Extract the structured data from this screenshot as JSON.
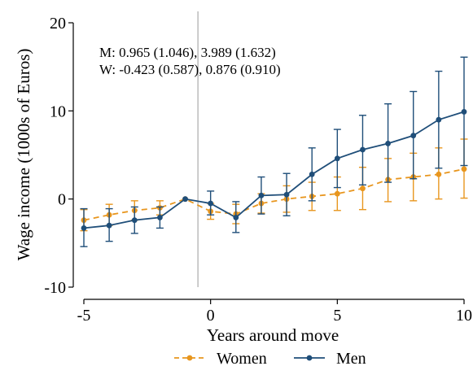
{
  "chart_data": {
    "type": "line",
    "xlabel": "Years around move",
    "ylabel": "Wage income (1000s of Euros)",
    "xlim": [
      -5,
      10
    ],
    "ylim": [
      -10,
      20
    ],
    "x_ticks": [
      -5,
      0,
      5,
      10
    ],
    "y_ticks": [
      -10,
      0,
      10,
      20
    ],
    "x_tick_labels": [
      "-5",
      "0",
      "5",
      "10"
    ],
    "y_tick_labels": [
      "-10",
      "0",
      "10",
      "20"
    ],
    "reference_line_x": -0.5,
    "grid": false,
    "legend_position": "bottom",
    "annotations": [
      "M: 0.965 (1.046), 3.989 (1.632)",
      "W: -0.423 (0.587), 0.876 (0.910)"
    ],
    "x": [
      -5,
      -4,
      -3,
      -2,
      -1,
      0,
      1,
      2,
      3,
      4,
      5,
      6,
      7,
      8,
      9,
      10
    ],
    "series": [
      {
        "name": "Women",
        "color": "#e8961e",
        "line_style": "dashed",
        "values": [
          -2.4,
          -1.8,
          -1.3,
          -1.0,
          0.0,
          -1.4,
          -1.7,
          -0.5,
          0.0,
          0.3,
          0.6,
          1.2,
          2.2,
          2.5,
          2.8,
          3.4
        ],
        "ci_low": [
          -3.6,
          -3.0,
          -2.4,
          -1.8,
          0.0,
          -2.3,
          -2.8,
          -1.6,
          -1.5,
          -1.3,
          -1.3,
          -1.2,
          -0.3,
          -0.2,
          0.0,
          0.1
        ],
        "ci_high": [
          -1.2,
          -0.6,
          -0.2,
          -0.2,
          0.0,
          -0.5,
          -0.6,
          0.6,
          1.5,
          1.9,
          2.5,
          3.6,
          4.6,
          5.2,
          5.8,
          6.8
        ]
      },
      {
        "name": "Men",
        "color": "#1f4e79",
        "line_style": "solid",
        "values": [
          -3.3,
          -3.0,
          -2.4,
          -2.1,
          0.0,
          -0.5,
          -2.1,
          0.4,
          0.5,
          2.8,
          4.6,
          5.6,
          6.3,
          7.2,
          9.0,
          9.9
        ],
        "ci_low": [
          -5.4,
          -4.8,
          -3.9,
          -3.3,
          0.0,
          -1.8,
          -3.8,
          -1.7,
          -1.9,
          -0.2,
          1.3,
          1.6,
          1.9,
          2.3,
          3.5,
          3.8
        ],
        "ci_high": [
          -1.1,
          -1.1,
          -0.9,
          -0.9,
          0.0,
          0.9,
          -0.3,
          2.5,
          2.9,
          5.8,
          7.9,
          9.5,
          10.8,
          12.2,
          14.5,
          16.1
        ]
      }
    ]
  }
}
